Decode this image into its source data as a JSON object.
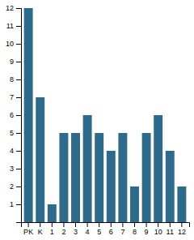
{
  "chart_data": {
    "type": "bar",
    "categories": [
      "PK",
      "K",
      "1",
      "2",
      "3",
      "4",
      "5",
      "6",
      "7",
      "8",
      "9",
      "10",
      "11",
      "12"
    ],
    "values": [
      12,
      7,
      1,
      5,
      5,
      6,
      5,
      4,
      5,
      2,
      5,
      6,
      4,
      2
    ],
    "color": "#2e6b8a",
    "ylim": [
      0,
      12
    ],
    "yticks": [
      1,
      2,
      3,
      4,
      5,
      6,
      7,
      8,
      9,
      10,
      11,
      12
    ],
    "grid": false
  }
}
